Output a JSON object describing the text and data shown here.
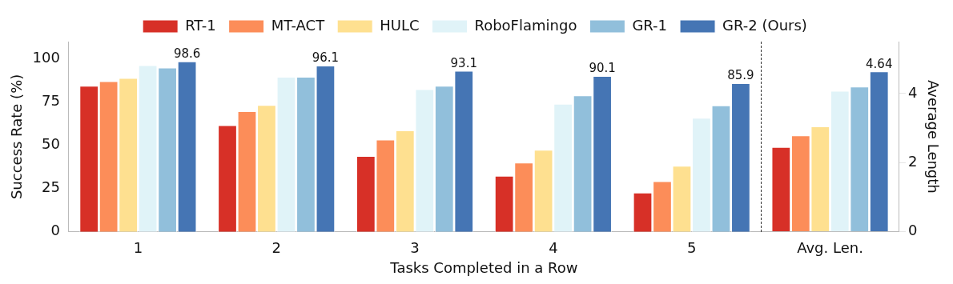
{
  "chart_data": {
    "type": "bar",
    "categories": [
      "1",
      "2",
      "3",
      "4",
      "5",
      "Avg. Len."
    ],
    "xlabel": "Tasks Completed in a Row",
    "ylabel": "Success Rate (%)",
    "y2label": "Average Length",
    "ylim": [
      0,
      110
    ],
    "yticks": [
      0,
      25,
      50,
      75,
      100
    ],
    "y2lim": [
      0,
      5.5
    ],
    "y2ticks": [
      0,
      2,
      4
    ],
    "grid": false,
    "legend": "top",
    "series": [
      {
        "name": "RT-1",
        "color": "#d73027",
        "values": [
          84.4,
          61.7,
          43.8,
          32.4,
          22.7,
          null
        ]
      },
      {
        "name": "MT-ACT",
        "color": "#fc8d59",
        "values": [
          87.1,
          69.8,
          53.3,
          40.0,
          29.3,
          null
        ]
      },
      {
        "name": "HULC",
        "color": "#fee090",
        "values": [
          88.9,
          73.3,
          58.7,
          47.4,
          38.2,
          null
        ]
      },
      {
        "name": "RoboFlamingo",
        "color": "#e0f3f8",
        "values": [
          96.3,
          89.7,
          82.5,
          74.0,
          65.9,
          null
        ]
      },
      {
        "name": "GR-1",
        "color": "#91bfdb",
        "values": [
          95.0,
          89.7,
          84.4,
          78.9,
          73.1,
          null
        ]
      },
      {
        "name": "GR-2 (Ours)",
        "color": "#4575b4",
        "values": [
          98.6,
          96.1,
          93.1,
          90.1,
          85.9,
          null
        ],
        "value_labels": [
          "98.6",
          "96.1",
          "93.1",
          "90.1",
          "85.9",
          null
        ]
      },
      {
        "axis": "y2",
        "color": "#d73027",
        "values": [
          null,
          null,
          null,
          null,
          null,
          2.45
        ]
      },
      {
        "axis": "y2",
        "color": "#fc8d59",
        "values": [
          null,
          null,
          null,
          null,
          null,
          2.79
        ]
      },
      {
        "axis": "y2",
        "color": "#fee090",
        "values": [
          null,
          null,
          null,
          null,
          null,
          3.05
        ]
      },
      {
        "axis": "y2",
        "color": "#e0f3f8",
        "values": [
          null,
          null,
          null,
          null,
          null,
          4.08
        ]
      },
      {
        "axis": "y2",
        "color": "#91bfdb",
        "values": [
          null,
          null,
          null,
          null,
          null,
          4.2
        ]
      },
      {
        "axis": "y2",
        "color": "#4575b4",
        "values": [
          null,
          null,
          null,
          null,
          null,
          4.64
        ],
        "value_labels": [
          null,
          null,
          null,
          null,
          null,
          "4.64"
        ]
      }
    ]
  }
}
